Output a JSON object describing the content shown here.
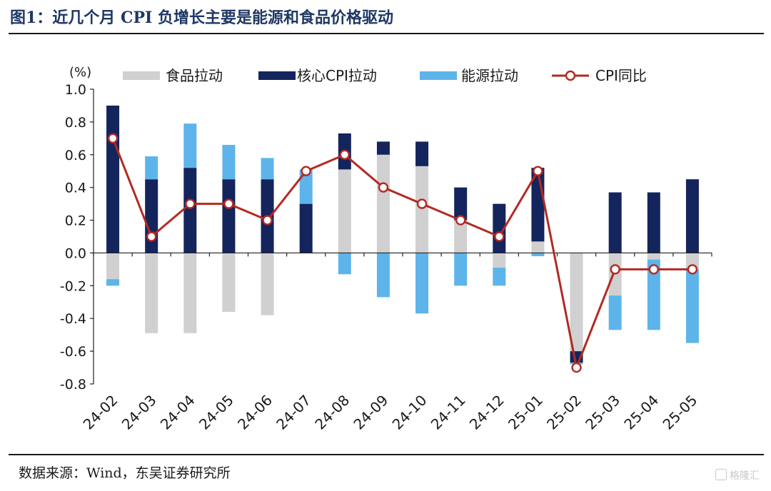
{
  "figure": {
    "title": "图1：近几个月 CPI 负增长主要是能源和食品价格驱动",
    "source": "数据来源：Wind，东吴证券研究所",
    "watermark": "格隆汇"
  },
  "chart_data": {
    "type": "bar",
    "stacked": true,
    "unit_label": "(%)",
    "categories": [
      "24-02",
      "24-03",
      "24-04",
      "24-05",
      "24-06",
      "24-07",
      "24-08",
      "24-09",
      "24-10",
      "24-11",
      "24-12",
      "25-01",
      "25-02",
      "25-03",
      "25-04",
      "25-05"
    ],
    "series": [
      {
        "name": "食品拉动",
        "kind": "bar",
        "color": "#d0d0d0",
        "values": [
          -0.16,
          -0.49,
          -0.49,
          -0.36,
          -0.38,
          0.0,
          0.51,
          0.6,
          0.53,
          0.2,
          -0.09,
          0.07,
          -0.6,
          -0.26,
          -0.04,
          -0.1
        ]
      },
      {
        "name": "核心CPI拉动",
        "kind": "bar",
        "color": "#14245c",
        "values": [
          0.9,
          0.45,
          0.52,
          0.45,
          0.45,
          0.3,
          0.22,
          0.08,
          0.15,
          0.2,
          0.3,
          0.45,
          -0.07,
          0.37,
          0.37,
          0.45
        ]
      },
      {
        "name": "能源拉动",
        "kind": "bar",
        "color": "#5db4ea",
        "values": [
          -0.04,
          0.14,
          0.27,
          0.21,
          0.13,
          0.21,
          -0.13,
          -0.27,
          -0.37,
          -0.2,
          -0.11,
          -0.02,
          -0.01,
          -0.21,
          -0.43,
          -0.45
        ]
      },
      {
        "name": "CPI同比",
        "kind": "line",
        "color": "#b22a22",
        "values": [
          0.7,
          0.1,
          0.3,
          0.3,
          0.2,
          0.5,
          0.6,
          0.4,
          0.3,
          0.2,
          0.1,
          0.5,
          -0.7,
          -0.1,
          -0.1,
          -0.1
        ]
      }
    ],
    "ylim": [
      -0.8,
      1.0
    ],
    "yticks": [
      "1.0",
      "0.8",
      "0.6",
      "0.4",
      "0.2",
      "0.0",
      "-0.2",
      "-0.4",
      "-0.6",
      "-0.8"
    ],
    "legend_position": "top",
    "grid": false
  }
}
